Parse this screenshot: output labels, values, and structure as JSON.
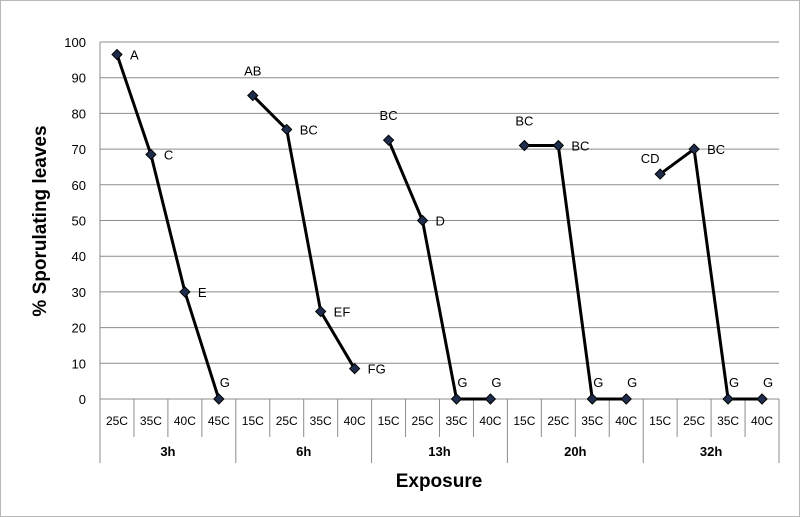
{
  "chart_data": {
    "type": "line",
    "title": "",
    "xlabel": "Exposure",
    "ylabel": "% Sporulating leaves",
    "ylim": [
      0,
      100
    ],
    "yticks": [
      "0",
      "10",
      "20",
      "30",
      "40",
      "50",
      "60",
      "70",
      "80",
      "90",
      "100"
    ],
    "grid": "horizontal",
    "legend": "none",
    "marker": "diamond",
    "line_color": "#000000",
    "marker_fill": "#1f2d4d",
    "groups": [
      {
        "label": "3h",
        "categories": [
          "25C",
          "35C",
          "40C",
          "45C"
        ],
        "values": [
          96.5,
          68.5,
          30,
          0
        ],
        "letters": [
          "A",
          "C",
          "E",
          "G"
        ]
      },
      {
        "label": "6h",
        "categories": [
          "15C",
          "25C",
          "35C",
          "40C"
        ],
        "values": [
          85,
          75.5,
          24.5,
          8.5
        ],
        "letters": [
          "AB",
          "BC",
          "EF",
          "FG"
        ]
      },
      {
        "label": "13h",
        "categories": [
          "15C",
          "25C",
          "35C",
          "40C"
        ],
        "values": [
          72.5,
          50,
          0,
          0
        ],
        "letters": [
          "BC",
          "D",
          "G",
          "G"
        ]
      },
      {
        "label": "20h",
        "categories": [
          "15C",
          "25C",
          "35C",
          "40C"
        ],
        "values": [
          71,
          71,
          0,
          0
        ],
        "letters": [
          "BC",
          "BC",
          "G",
          "G"
        ]
      },
      {
        "label": "32h",
        "categories": [
          "15C",
          "25C",
          "35C",
          "40C"
        ],
        "values": [
          63,
          70,
          0,
          0
        ],
        "letters": [
          "CD",
          "BC",
          "G",
          "G"
        ]
      }
    ]
  }
}
